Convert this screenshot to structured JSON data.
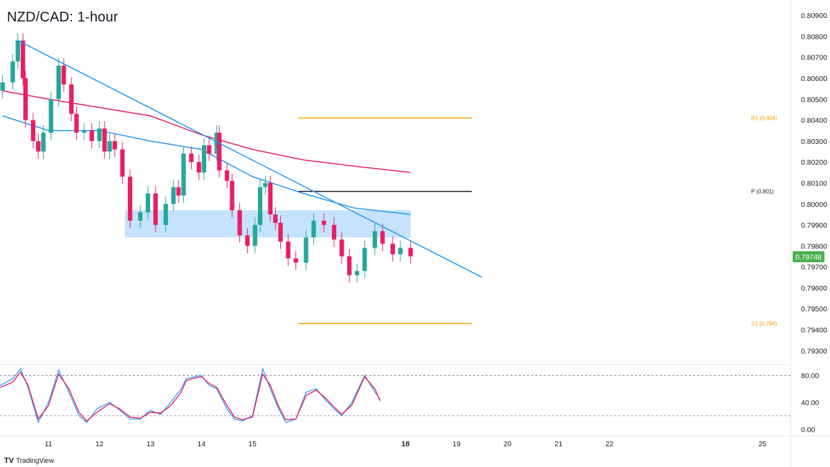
{
  "title": "NZD/CAD: 1-hour",
  "brand": {
    "logo": "TV",
    "name": "TradingView"
  },
  "colors": {
    "up": "#26a69a",
    "down": "#e91e63",
    "ema_fast": "#2196f3",
    "ema_slow": "#e91e63",
    "trendline": "#2196f3",
    "zone": "#bbdefb",
    "resistance": "#ff9800",
    "pivot": "#131722",
    "stoch_k": "#42a5f5",
    "stoch_d": "#e91e63",
    "price_badge": "#4caf50"
  },
  "chart_data": [
    {
      "type": "candlestick",
      "title": "NZD/CAD: 1-hour",
      "ylim": [
        0.7924,
        0.8094
      ],
      "y_ticks": [
        "0.80900",
        "0.80800",
        "0.80700",
        "0.80600",
        "0.80500",
        "0.80400",
        "0.80300",
        "0.80200",
        "0.80100",
        "0.80000",
        "0.79900",
        "0.79800",
        "0.79700",
        "0.79600",
        "0.79500",
        "0.79400",
        "0.79300"
      ],
      "x_ticks": [
        {
          "day": 11,
          "label": "11"
        },
        {
          "day": 12,
          "label": "12"
        },
        {
          "day": 13,
          "label": "13"
        },
        {
          "day": 14,
          "label": "14"
        },
        {
          "day": 15,
          "label": "15"
        },
        {
          "day": 18,
          "label": "18"
        },
        {
          "day": 19,
          "label": "19"
        },
        {
          "day": 20,
          "label": "20"
        },
        {
          "day": 21,
          "label": "21"
        },
        {
          "day": 22,
          "label": "22"
        },
        {
          "day": 25,
          "label": "25"
        }
      ],
      "x_range": [
        10.05,
        25.55
      ],
      "current_price": "0.79748",
      "series_close": [
        [
          10.1,
          0.8058
        ],
        [
          10.3,
          0.8068
        ],
        [
          10.4,
          0.8078
        ],
        [
          10.5,
          0.806
        ],
        [
          10.55,
          0.804
        ],
        [
          10.7,
          0.803
        ],
        [
          10.8,
          0.8025
        ],
        [
          10.9,
          0.8034
        ],
        [
          11.05,
          0.805
        ],
        [
          11.2,
          0.8066
        ],
        [
          11.3,
          0.8057
        ],
        [
          11.45,
          0.8043
        ],
        [
          11.55,
          0.8034
        ],
        [
          11.7,
          0.8035
        ],
        [
          11.85,
          0.803
        ],
        [
          12.0,
          0.8036
        ],
        [
          12.1,
          0.8025
        ],
        [
          12.2,
          0.803
        ],
        [
          12.3,
          0.8026
        ],
        [
          12.45,
          0.8013
        ],
        [
          12.6,
          0.7992
        ],
        [
          12.8,
          0.7996
        ],
        [
          12.95,
          0.8005
        ],
        [
          13.1,
          0.799
        ],
        [
          13.3,
          0.8
        ],
        [
          13.45,
          0.8008
        ],
        [
          13.55,
          0.8004
        ],
        [
          13.65,
          0.8024
        ],
        [
          13.8,
          0.802
        ],
        [
          13.95,
          0.8015
        ],
        [
          14.05,
          0.8028
        ],
        [
          14.15,
          0.8024
        ],
        [
          14.3,
          0.8034
        ],
        [
          14.35,
          0.8016
        ],
        [
          14.5,
          0.8011
        ],
        [
          14.6,
          0.7997
        ],
        [
          14.75,
          0.7985
        ],
        [
          14.9,
          0.798
        ],
        [
          15.05,
          0.799
        ],
        [
          15.15,
          0.8008
        ],
        [
          15.25,
          0.801
        ],
        [
          15.35,
          0.7995
        ],
        [
          15.45,
          0.7991
        ],
        [
          15.55,
          0.7982
        ],
        [
          15.7,
          0.7974
        ],
        [
          15.85,
          0.7972
        ],
        [
          16.05,
          0.7984
        ],
        [
          16.2,
          0.7992
        ],
        [
          16.4,
          0.799
        ],
        [
          16.6,
          0.7983
        ],
        [
          16.75,
          0.7975
        ],
        [
          16.9,
          0.7966
        ],
        [
          17.05,
          0.7968
        ],
        [
          17.2,
          0.7979
        ],
        [
          17.4,
          0.7987
        ],
        [
          17.55,
          0.7981
        ],
        [
          17.75,
          0.7976
        ],
        [
          17.9,
          0.7979
        ],
        [
          18.1,
          0.7975
        ]
      ],
      "ema_fast": [
        [
          10.1,
          0.8042
        ],
        [
          11.0,
          0.8035
        ],
        [
          12.0,
          0.8035
        ],
        [
          13.0,
          0.803
        ],
        [
          14.0,
          0.8026
        ],
        [
          15.0,
          0.8013
        ],
        [
          16.0,
          0.8005
        ],
        [
          17.0,
          0.7998
        ],
        [
          18.1,
          0.7995
        ]
      ],
      "ema_slow": [
        [
          10.1,
          0.8054
        ],
        [
          11.0,
          0.805
        ],
        [
          12.0,
          0.8046
        ],
        [
          13.0,
          0.8042
        ],
        [
          14.0,
          0.8033
        ],
        [
          15.0,
          0.8026
        ],
        [
          16.0,
          0.8021
        ],
        [
          17.0,
          0.8018
        ],
        [
          18.1,
          0.8015
        ]
      ],
      "trendline": [
        [
          10.4,
          0.8078
        ],
        [
          19.5,
          0.7965
        ]
      ],
      "zone": {
        "from": 12.5,
        "to": 18.1,
        "low": 0.7984,
        "high": 0.7997
      },
      "levels": [
        {
          "name": "R1",
          "label": "R1 (0.804)",
          "value": 0.8041,
          "from": 15.9,
          "to": 19.3,
          "color": "#ff9800"
        },
        {
          "name": "P",
          "label": "P (0.801)",
          "value": 0.8006,
          "from": 15.9,
          "to": 19.3,
          "color": "#131722"
        },
        {
          "name": "S1",
          "label": "S1 (0.794)",
          "value": 0.7943,
          "from": 15.9,
          "to": 19.3,
          "color": "#ff9800"
        }
      ]
    },
    {
      "type": "line",
      "ylim": [
        -10,
        95
      ],
      "y_ticks": [
        "80.00",
        "40.00",
        "0.00"
      ],
      "levels": [
        80,
        20
      ],
      "series": [
        {
          "values": [
            [
              10.05,
              65
            ],
            [
              10.3,
              75
            ],
            [
              10.45,
              90
            ],
            [
              10.6,
              62
            ],
            [
              10.8,
              10
            ],
            [
              11.0,
              40
            ],
            [
              11.2,
              88
            ],
            [
              11.4,
              55
            ],
            [
              11.6,
              20
            ],
            [
              11.75,
              10
            ],
            [
              11.95,
              30
            ],
            [
              12.2,
              40
            ],
            [
              12.4,
              28
            ],
            [
              12.6,
              15
            ],
            [
              12.8,
              15
            ],
            [
              13.0,
              28
            ],
            [
              13.2,
              22
            ],
            [
              13.4,
              40
            ],
            [
              13.6,
              60
            ],
            [
              13.7,
              75
            ],
            [
              13.85,
              78
            ],
            [
              14.0,
              80
            ],
            [
              14.15,
              65
            ],
            [
              14.3,
              60
            ],
            [
              14.5,
              30
            ],
            [
              14.65,
              15
            ],
            [
              14.8,
              12
            ],
            [
              15.0,
              20
            ],
            [
              15.2,
              90
            ],
            [
              15.35,
              60
            ],
            [
              15.5,
              32
            ],
            [
              15.65,
              10
            ],
            [
              15.85,
              15
            ],
            [
              16.05,
              55
            ],
            [
              16.25,
              60
            ],
            [
              16.45,
              42
            ],
            [
              16.6,
              30
            ],
            [
              16.75,
              20
            ],
            [
              16.95,
              40
            ],
            [
              17.2,
              80
            ],
            [
              17.4,
              55
            ],
            [
              17.5,
              45
            ]
          ]
        },
        {
          "values": [
            [
              10.05,
              62
            ],
            [
              10.3,
              70
            ],
            [
              10.45,
              85
            ],
            [
              10.6,
              65
            ],
            [
              10.8,
              15
            ],
            [
              11.0,
              35
            ],
            [
              11.2,
              82
            ],
            [
              11.4,
              60
            ],
            [
              11.6,
              25
            ],
            [
              11.75,
              12
            ],
            [
              11.95,
              25
            ],
            [
              12.2,
              38
            ],
            [
              12.4,
              30
            ],
            [
              12.6,
              18
            ],
            [
              12.8,
              16
            ],
            [
              13.0,
              25
            ],
            [
              13.2,
              24
            ],
            [
              13.4,
              35
            ],
            [
              13.6,
              55
            ],
            [
              13.7,
              72
            ],
            [
              13.85,
              76
            ],
            [
              14.0,
              78
            ],
            [
              14.15,
              68
            ],
            [
              14.3,
              62
            ],
            [
              14.5,
              35
            ],
            [
              14.65,
              18
            ],
            [
              14.8,
              14
            ],
            [
              15.0,
              18
            ],
            [
              15.2,
              82
            ],
            [
              15.35,
              65
            ],
            [
              15.5,
              36
            ],
            [
              15.65,
              14
            ],
            [
              15.85,
              15
            ],
            [
              16.05,
              50
            ],
            [
              16.25,
              58
            ],
            [
              16.45,
              45
            ],
            [
              16.6,
              33
            ],
            [
              16.75,
              22
            ],
            [
              16.95,
              36
            ],
            [
              17.2,
              78
            ],
            [
              17.4,
              60
            ],
            [
              17.5,
              42
            ]
          ]
        }
      ]
    }
  ]
}
